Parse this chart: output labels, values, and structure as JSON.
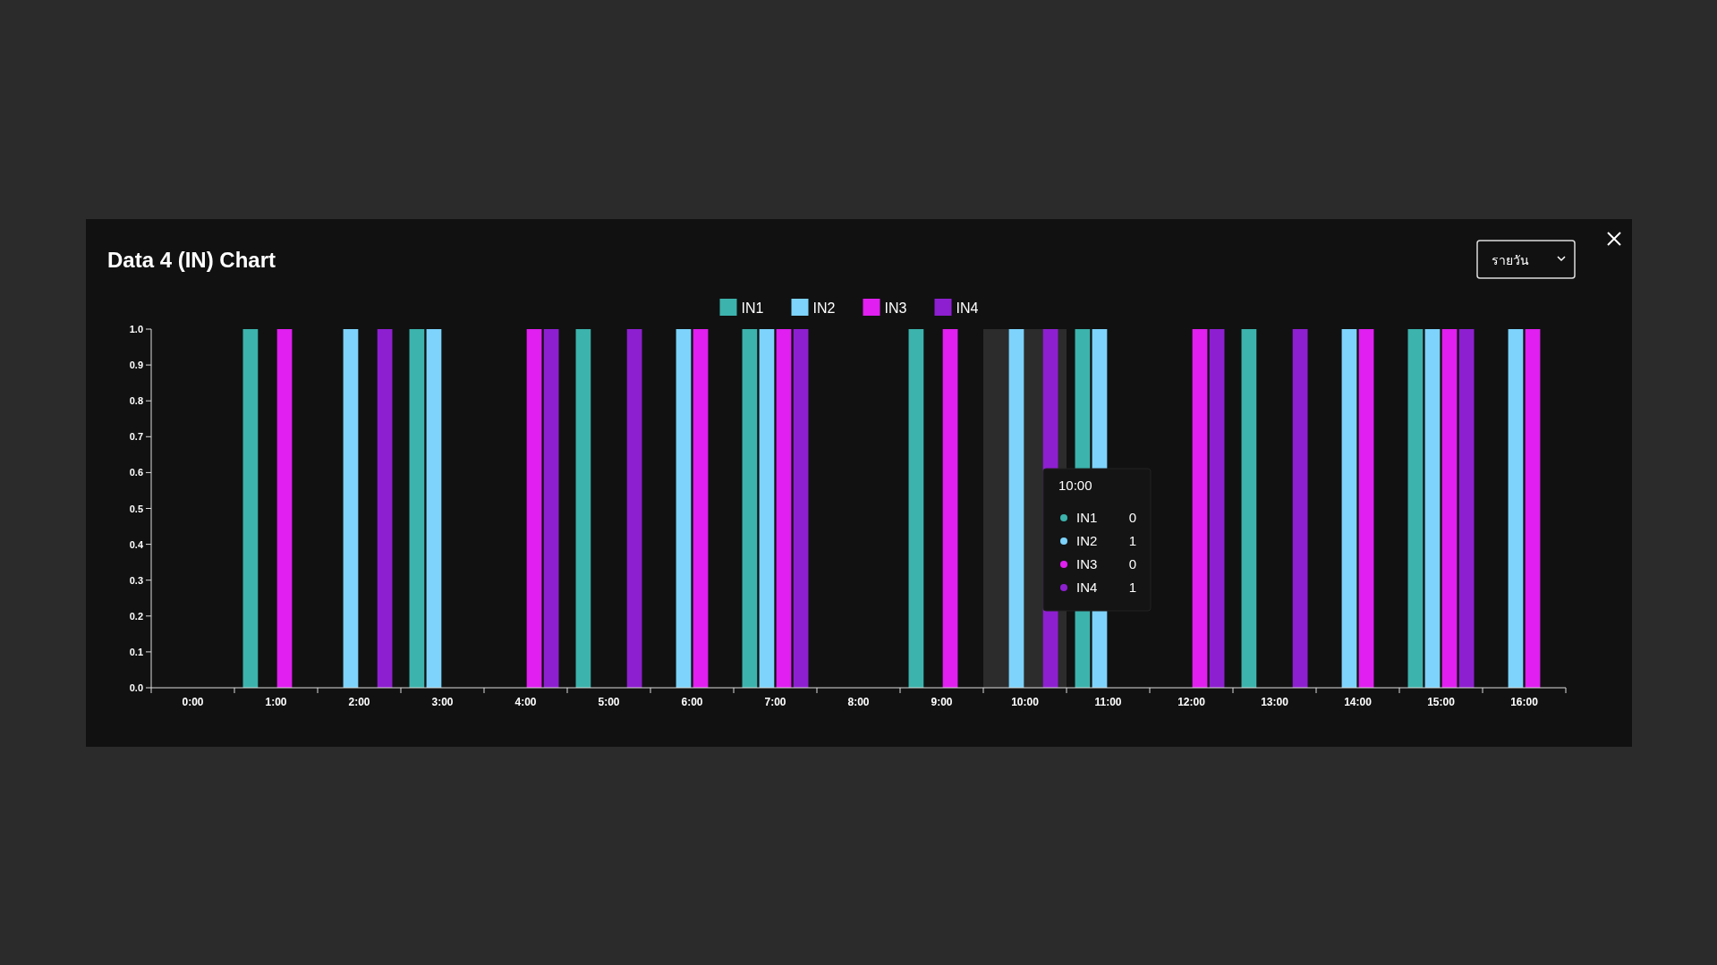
{
  "chart_data": {
    "type": "bar",
    "title": "Data 4 (IN) Chart",
    "categories": [
      "0:00",
      "1:00",
      "2:00",
      "3:00",
      "4:00",
      "5:00",
      "6:00",
      "7:00",
      "8:00",
      "9:00",
      "10:00",
      "11:00",
      "12:00",
      "13:00",
      "14:00",
      "15:00",
      "16:00"
    ],
    "series": [
      {
        "name": "IN1",
        "color": "#3cb3ad",
        "values": [
          0,
          1,
          0,
          1,
          0,
          1,
          0,
          1,
          0,
          1,
          0,
          1,
          0,
          1,
          0,
          1,
          0
        ]
      },
      {
        "name": "IN2",
        "color": "#7dd3fc",
        "values": [
          0,
          0,
          1,
          1,
          0,
          0,
          1,
          1,
          0,
          0,
          1,
          1,
          0,
          0,
          1,
          1,
          1
        ]
      },
      {
        "name": "IN3",
        "color": "#e01ff0",
        "values": [
          0,
          1,
          0,
          0,
          1,
          0,
          1,
          1,
          0,
          1,
          0,
          0,
          1,
          0,
          1,
          1,
          1
        ]
      },
      {
        "name": "IN4",
        "color": "#8e1fd0",
        "values": [
          0,
          0,
          1,
          0,
          1,
          1,
          0,
          1,
          0,
          0,
          1,
          0,
          1,
          1,
          0,
          1,
          0
        ]
      }
    ],
    "ylim": [
      0,
      1
    ],
    "yticks": [
      {
        "value": 0,
        "label": "0.0"
      },
      {
        "value": 0.1,
        "label": "0.1"
      },
      {
        "value": 0.2,
        "label": "0.2"
      },
      {
        "value": 0.3,
        "label": "0.3"
      },
      {
        "value": 0.4,
        "label": "0.4"
      },
      {
        "value": 0.5,
        "label": "0.5"
      },
      {
        "value": 0.6,
        "label": "0.6"
      },
      {
        "value": 0.7,
        "label": "0.7"
      },
      {
        "value": 0.8,
        "label": "0.8"
      },
      {
        "value": 0.9,
        "label": "0.9"
      },
      {
        "value": 1,
        "label": "1.0"
      }
    ],
    "bands": [
      {
        "axis": "x",
        "from": "10:00",
        "to": "10:00",
        "color": "#2c2c2c"
      }
    ],
    "annotations": [
      "รายวัน",
      "10:00",
      "IN1",
      "0",
      "IN2",
      "1",
      "IN3",
      "0",
      "IN4",
      "1"
    ],
    "legend": "top",
    "grid": false
  }
}
